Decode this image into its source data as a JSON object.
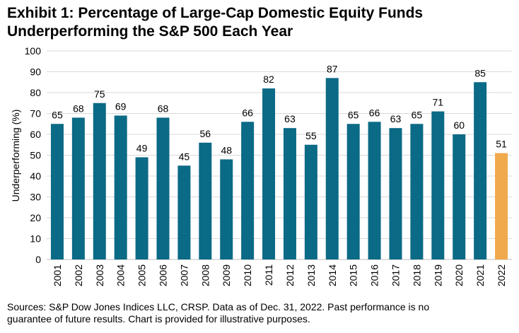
{
  "title_line1": "Exhibit 1: Percentage of Large-Cap Domestic Equity Funds",
  "title_line2": "Underperforming the S&P 500 Each Year",
  "footnote_line1": "Sources: S&P Dow Jones Indices LLC, CRSP.  Data as of Dec. 31, 2022.  Past performance is no",
  "footnote_line2": "guarantee of future results.  Chart is provided for illustrative purposes.",
  "colors": {
    "bar": "#0b6a86",
    "highlight": "#f0a94b"
  },
  "chart_data": {
    "type": "bar",
    "categories": [
      "2001",
      "2002",
      "2003",
      "2004",
      "2005",
      "2006",
      "2007",
      "2008",
      "2009",
      "2010",
      "2011",
      "2012",
      "2013",
      "2014",
      "2015",
      "2016",
      "2017",
      "2018",
      "2019",
      "2020",
      "2021",
      "2022"
    ],
    "values": [
      65,
      68,
      75,
      69,
      49,
      68,
      45,
      56,
      48,
      66,
      82,
      63,
      55,
      87,
      65,
      66,
      63,
      65,
      71,
      60,
      85,
      51
    ],
    "data_labels": [
      "65",
      "68",
      "75",
      "69",
      "49",
      "68",
      "45",
      "56",
      "48",
      "66",
      "82",
      "63",
      "55",
      "87",
      "65",
      "66",
      "63",
      "65",
      "71",
      "60",
      "85",
      "51"
    ],
    "highlight_category": "2022",
    "ylabel": "Underperforming (%)",
    "xlabel": "",
    "ylim": [
      0,
      100
    ],
    "yticks": [
      "0",
      "10",
      "20",
      "30",
      "40",
      "50",
      "60",
      "70",
      "80",
      "90",
      "100"
    ],
    "grid": true,
    "legend": "none"
  }
}
